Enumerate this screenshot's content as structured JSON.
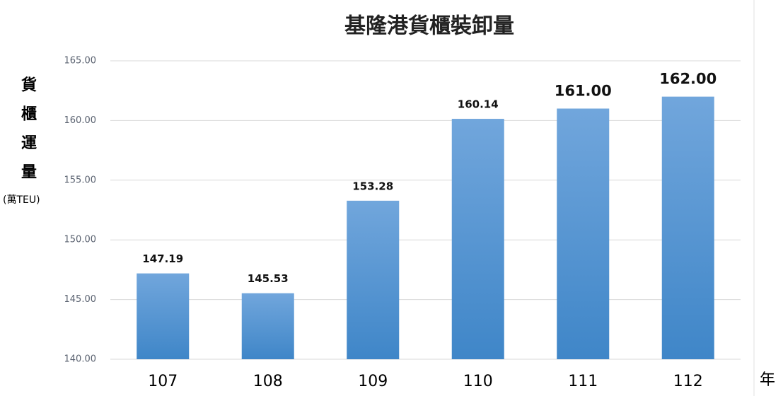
{
  "chart_data": {
    "type": "bar",
    "title": "基隆港貨櫃裝卸量",
    "y_label": "貨櫃運量",
    "y_unit": "(萬TEU)",
    "x_label": "年",
    "categories": [
      "107",
      "108",
      "109",
      "110",
      "111",
      "112"
    ],
    "values": [
      147.19,
      145.53,
      153.28,
      160.14,
      161,
      162
    ],
    "value_labels": [
      "147.19",
      "145.53",
      "153.28",
      "160.14",
      "161.00",
      "162.00"
    ],
    "color": "#5b9bd5",
    "ylim": [
      140,
      165
    ],
    "yticks": [
      {
        "value": 140,
        "label": "140.00"
      },
      {
        "value": 145,
        "label": "145.00"
      },
      {
        "value": 150,
        "label": "150.00"
      },
      {
        "value": 155,
        "label": "155.00"
      },
      {
        "value": 160,
        "label": "160.00"
      },
      {
        "value": 165,
        "label": "165.00"
      }
    ],
    "grid": true
  }
}
